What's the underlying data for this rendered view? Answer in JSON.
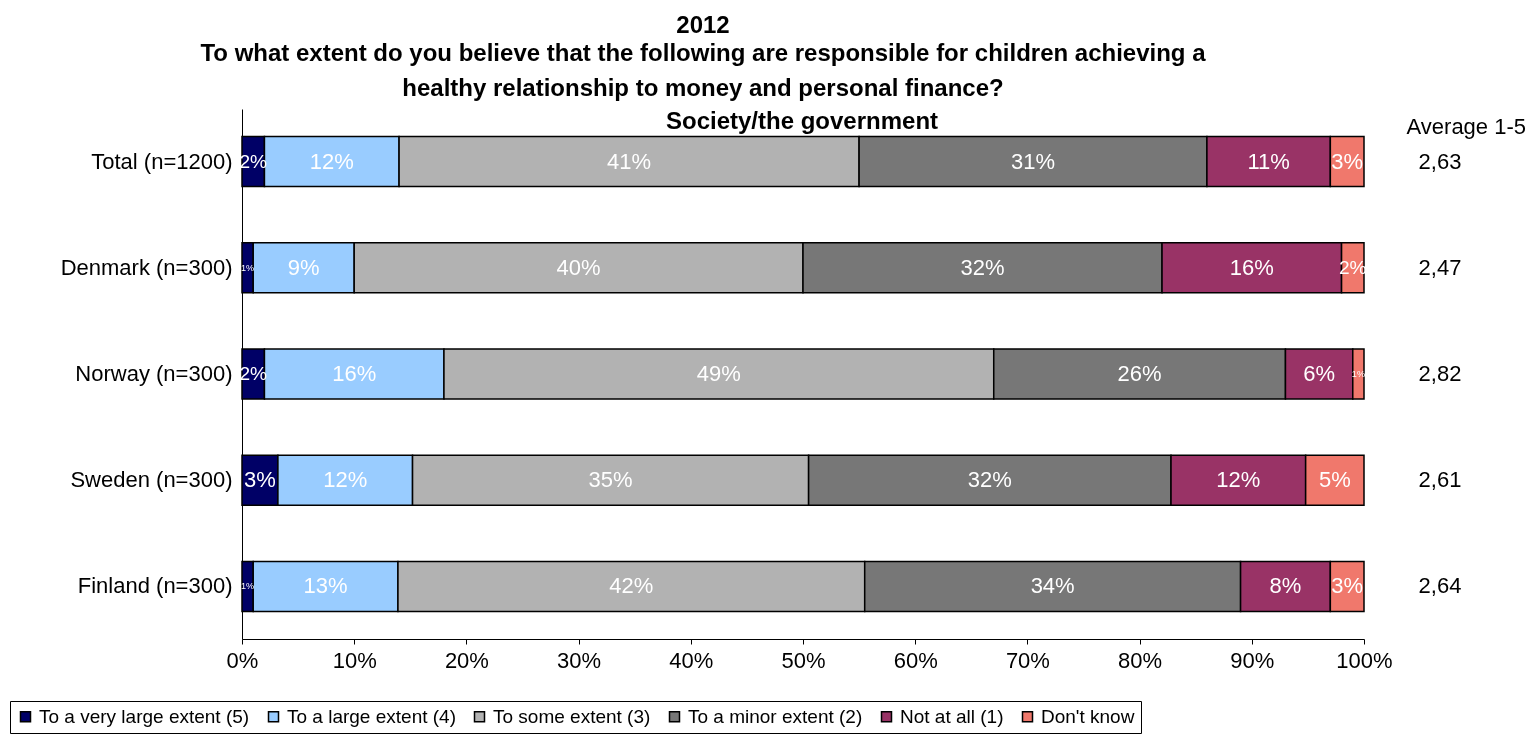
{
  "chart_data": {
    "type": "bar",
    "orientation": "horizontal",
    "stacked": true,
    "title": "2012",
    "subtitle": "To what extent do you believe that the following are responsible for children achieving a healthy relationship to money and personal finance?",
    "categories": [
      "Total (n=1200)",
      "Denmark (n=300)",
      "Norway (n=300)",
      "Sweden (n=300)",
      "Finland (n=300)"
    ],
    "series": [
      {
        "name": "To a very large extent (5)",
        "color": "#000066",
        "values": [
          2,
          1,
          2,
          3.2,
          1
        ],
        "value_labels": [
          "2%",
          "1%",
          "2%",
          "3%",
          "1%"
        ]
      },
      {
        "name": "To a large extent (4)",
        "color": "#99ccff",
        "values": [
          12,
          9,
          16,
          12,
          12.9
        ],
        "value_labels": [
          "12%",
          "9%",
          "16%",
          "12%",
          "13%"
        ]
      },
      {
        "name": "To some extent (3)",
        "color": "#b2b2b2",
        "values": [
          41,
          40,
          49,
          35.3,
          41.6
        ],
        "value_labels": [
          "41%",
          "40%",
          "49%",
          "35%",
          "42%"
        ]
      },
      {
        "name": "To a minor extent (2)",
        "color": "#777777",
        "values": [
          31,
          32,
          26,
          32.3,
          33.5
        ],
        "value_labels": [
          "31%",
          "32%",
          "26%",
          "32%",
          "34%"
        ]
      },
      {
        "name": "Not at all (1)",
        "color": "#993366",
        "values": [
          11,
          16,
          6,
          12,
          8
        ],
        "value_labels": [
          "11%",
          "16%",
          "6%",
          "12%",
          "8%"
        ]
      },
      {
        "name": "Don't know",
        "color": "#f0786c",
        "values": [
          3,
          2,
          1,
          5.2,
          3
        ],
        "value_labels": [
          "3%",
          "2%",
          "1%",
          "5%",
          "3%"
        ]
      }
    ],
    "xlim": [
      0,
      100
    ],
    "xticks": [
      {
        "value": 0,
        "label": "0%"
      },
      {
        "value": 10,
        "label": "10%"
      },
      {
        "value": 20,
        "label": "20%"
      },
      {
        "value": 30,
        "label": "30%"
      },
      {
        "value": 40,
        "label": "40%"
      },
      {
        "value": 50,
        "label": "50%"
      },
      {
        "value": 60,
        "label": "60%"
      },
      {
        "value": 70,
        "label": "70%"
      },
      {
        "value": 80,
        "label": "80%"
      },
      {
        "value": 90,
        "label": "90%"
      },
      {
        "value": 100,
        "label": "100%"
      }
    ],
    "annotations": [
      "Society/the government",
      "Average 1-5",
      "2,63",
      "2,47",
      "2,82",
      "2,61",
      "2,64"
    ],
    "grid": false,
    "legend": "bottom"
  }
}
